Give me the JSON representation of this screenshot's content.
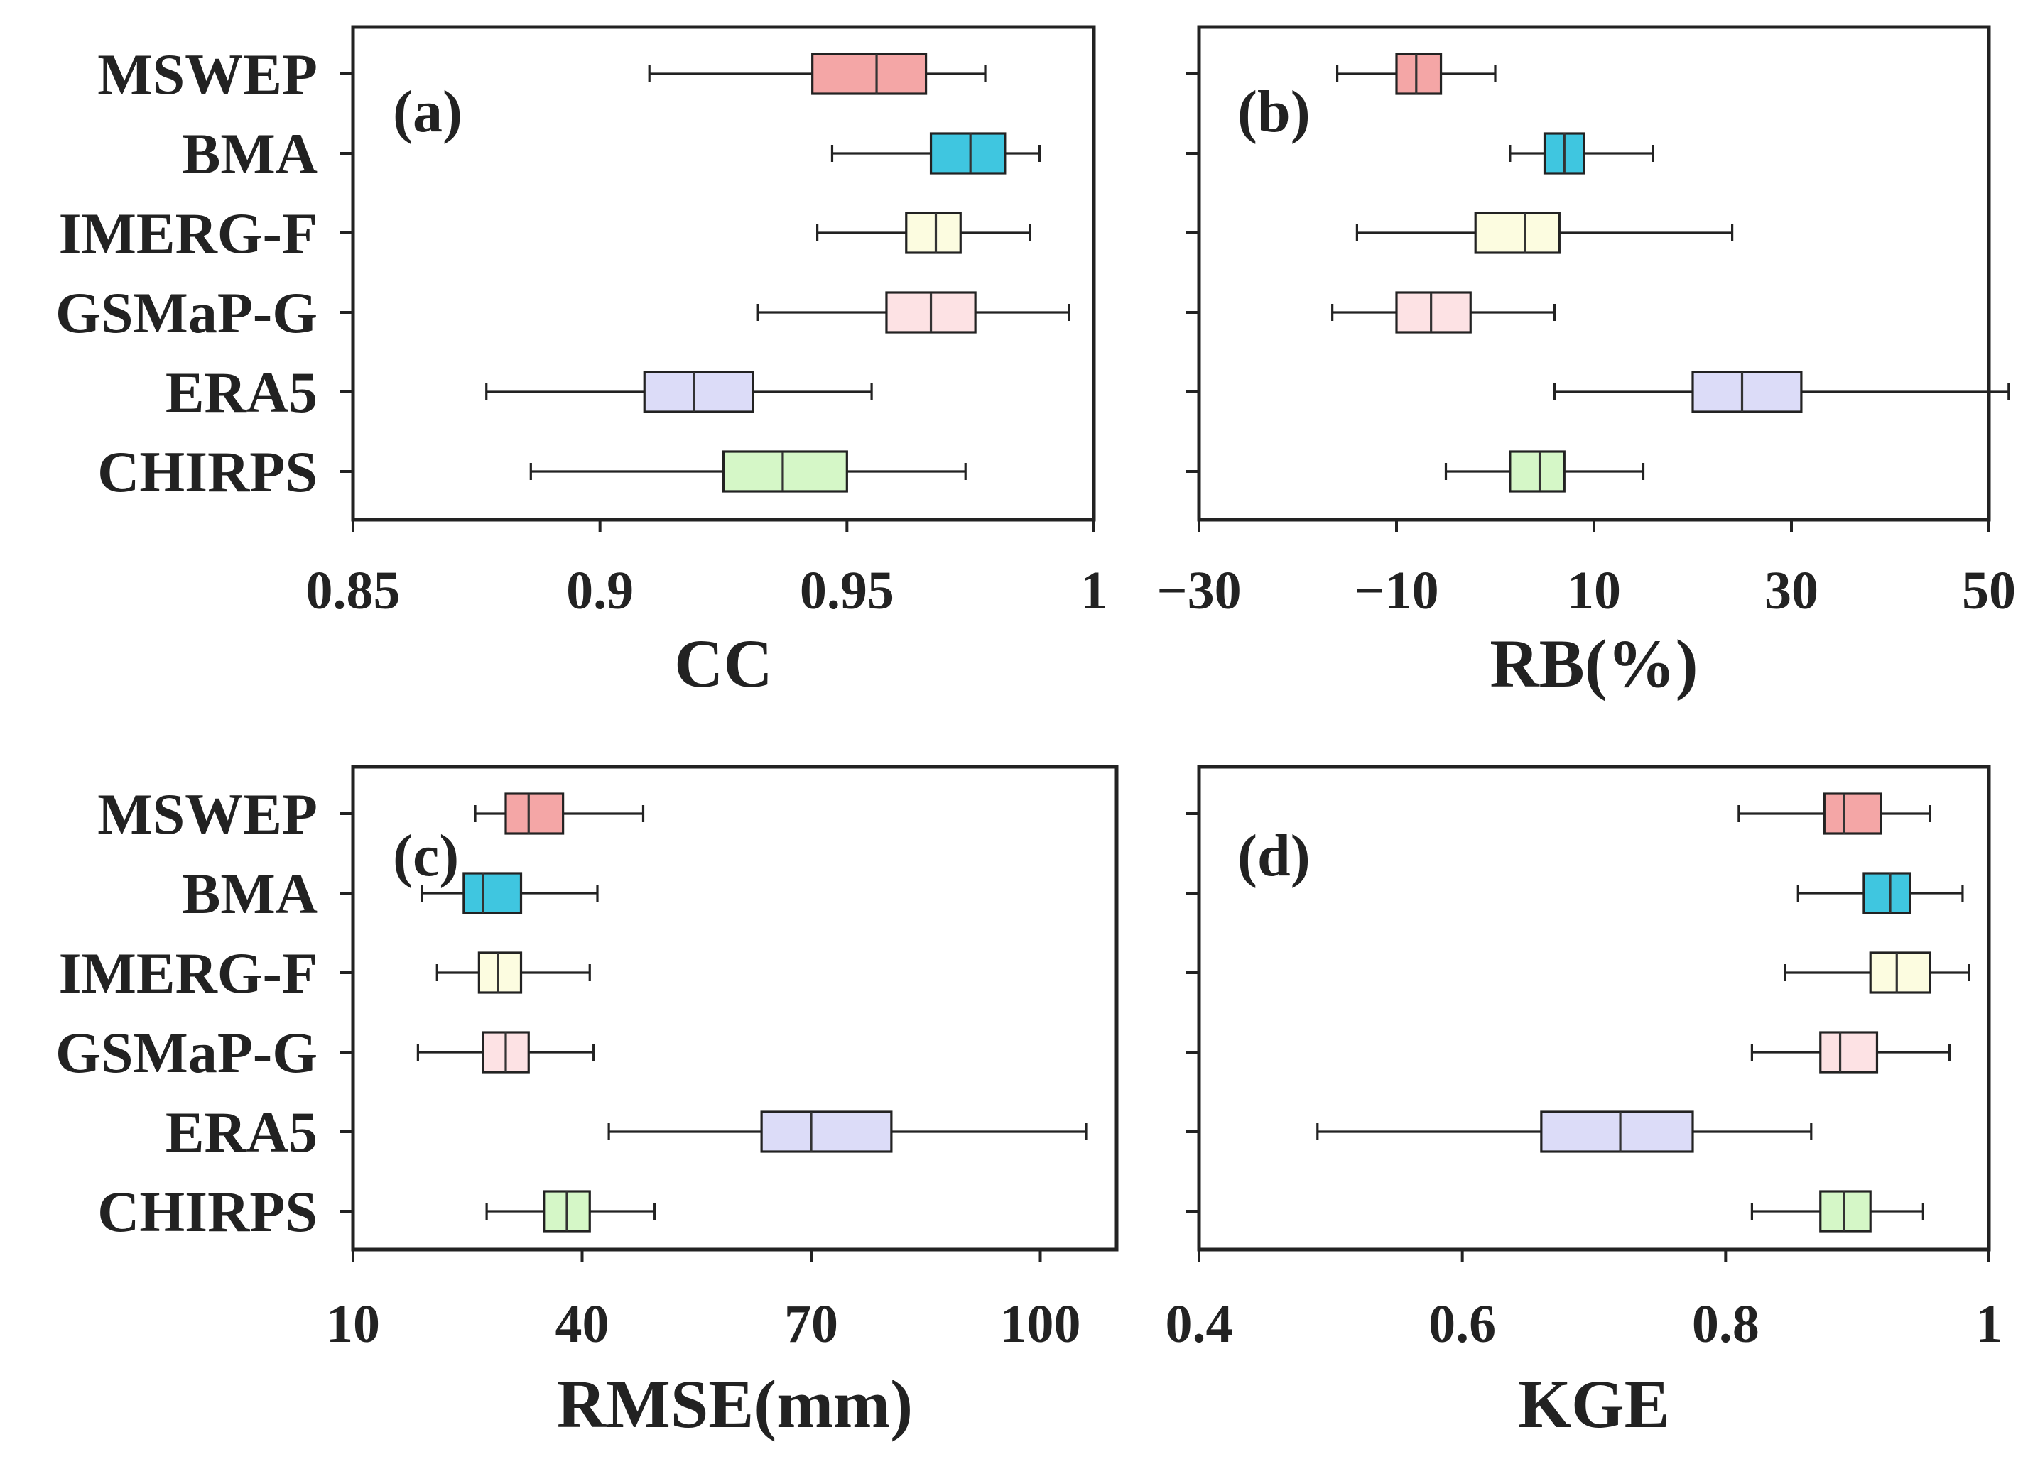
{
  "chart_data": [
    {
      "type": "box",
      "panel_label": "(a)",
      "xlabel": "CC",
      "xlim": [
        0.85,
        1.0
      ],
      "xticks": [
        0.85,
        0.9,
        0.95,
        1.0
      ],
      "xtick_labels": [
        "0.85",
        "0.9",
        "0.95",
        "1"
      ],
      "categories": [
        "MSWEP",
        "BMA",
        "IMERG-F",
        "GSMaP-G",
        "ERA5",
        "CHIRPS"
      ],
      "boxes": [
        {
          "name": "MSWEP",
          "min": 0.91,
          "q1": 0.943,
          "median": 0.956,
          "q3": 0.966,
          "max": 0.978
        },
        {
          "name": "BMA",
          "min": 0.947,
          "q1": 0.967,
          "median": 0.975,
          "q3": 0.982,
          "max": 0.989
        },
        {
          "name": "IMERG-F",
          "min": 0.944,
          "q1": 0.962,
          "median": 0.968,
          "q3": 0.973,
          "max": 0.987
        },
        {
          "name": "GSMaP-G",
          "min": 0.932,
          "q1": 0.958,
          "median": 0.967,
          "q3": 0.976,
          "max": 0.995
        },
        {
          "name": "ERA5",
          "min": 0.877,
          "q1": 0.909,
          "median": 0.919,
          "q3": 0.931,
          "max": 0.955
        },
        {
          "name": "CHIRPS",
          "min": 0.886,
          "q1": 0.925,
          "median": 0.937,
          "q3": 0.95,
          "max": 0.974
        }
      ]
    },
    {
      "type": "box",
      "panel_label": "(b)",
      "xlabel": "RB(%)",
      "xlim": [
        -30,
        50
      ],
      "xticks": [
        -30,
        -10,
        10,
        30,
        50
      ],
      "xtick_labels": [
        "−30",
        "−10",
        "10",
        "30",
        "50"
      ],
      "categories": [
        "MSWEP",
        "BMA",
        "IMERG-F",
        "GSMaP-G",
        "ERA5",
        "CHIRPS"
      ],
      "boxes": [
        {
          "name": "MSWEP",
          "min": -16,
          "q1": -10,
          "median": -8,
          "q3": -5.5,
          "max": 0
        },
        {
          "name": "BMA",
          "min": 1.5,
          "q1": 5,
          "median": 7,
          "q3": 9,
          "max": 16
        },
        {
          "name": "IMERG-F",
          "min": -14,
          "q1": -2,
          "median": 3,
          "q3": 6.5,
          "max": 24
        },
        {
          "name": "GSMaP-G",
          "min": -16.5,
          "q1": -10,
          "median": -6.5,
          "q3": -2.5,
          "max": 6
        },
        {
          "name": "ERA5",
          "min": 6,
          "q1": 20,
          "median": 25,
          "q3": 31,
          "max": 52
        },
        {
          "name": "CHIRPS",
          "min": -5,
          "q1": 1.5,
          "median": 4.5,
          "q3": 7,
          "max": 15
        }
      ]
    },
    {
      "type": "box",
      "panel_label": "(c)",
      "xlabel": "RMSE(mm)",
      "xlim": [
        10,
        110
      ],
      "xticks": [
        10,
        40,
        70,
        100
      ],
      "xtick_labels": [
        "10",
        "40",
        "70",
        "100"
      ],
      "categories": [
        "MSWEP",
        "BMA",
        "IMERG-F",
        "GSMaP-G",
        "ERA5",
        "CHIRPS"
      ],
      "boxes": [
        {
          "name": "MSWEP",
          "min": 26,
          "q1": 30,
          "median": 33,
          "q3": 37.5,
          "max": 48
        },
        {
          "name": "BMA",
          "min": 19,
          "q1": 24.5,
          "median": 27,
          "q3": 32,
          "max": 42
        },
        {
          "name": "IMERG-F",
          "min": 21,
          "q1": 26.5,
          "median": 29,
          "q3": 32,
          "max": 41
        },
        {
          "name": "GSMaP-G",
          "min": 18.5,
          "q1": 27,
          "median": 30,
          "q3": 33,
          "max": 41.5
        },
        {
          "name": "ERA5",
          "min": 43.5,
          "q1": 63.5,
          "median": 70,
          "q3": 80.5,
          "max": 106
        },
        {
          "name": "CHIRPS",
          "min": 27.5,
          "q1": 35,
          "median": 38,
          "q3": 41,
          "max": 49.5
        }
      ]
    },
    {
      "type": "box",
      "panel_label": "(d)",
      "xlabel": "KGE",
      "xlim": [
        0.4,
        1.0
      ],
      "xticks": [
        0.4,
        0.6,
        0.8,
        1.0
      ],
      "xtick_labels": [
        "0.4",
        "0.6",
        "0.8",
        "1"
      ],
      "categories": [
        "MSWEP",
        "BMA",
        "IMERG-F",
        "GSMaP-G",
        "ERA5",
        "CHIRPS"
      ],
      "boxes": [
        {
          "name": "MSWEP",
          "min": 0.81,
          "q1": 0.875,
          "median": 0.89,
          "q3": 0.918,
          "max": 0.955
        },
        {
          "name": "BMA",
          "min": 0.855,
          "q1": 0.905,
          "median": 0.925,
          "q3": 0.94,
          "max": 0.98
        },
        {
          "name": "IMERG-F",
          "min": 0.845,
          "q1": 0.91,
          "median": 0.93,
          "q3": 0.955,
          "max": 0.985
        },
        {
          "name": "GSMaP-G",
          "min": 0.82,
          "q1": 0.872,
          "median": 0.887,
          "q3": 0.915,
          "max": 0.97
        },
        {
          "name": "ERA5",
          "min": 0.49,
          "q1": 0.66,
          "median": 0.72,
          "q3": 0.775,
          "max": 0.865
        },
        {
          "name": "CHIRPS",
          "min": 0.82,
          "q1": 0.872,
          "median": 0.89,
          "q3": 0.91,
          "max": 0.95
        }
      ]
    }
  ],
  "colors": {
    "MSWEP": "#f4a6a6",
    "BMA": "#3fc6e0",
    "IMERG-F": "#fcfce0",
    "GSMaP-G": "#fde2e4",
    "ERA5": "#dcdcf8",
    "CHIRPS": "#d5f7c7"
  }
}
